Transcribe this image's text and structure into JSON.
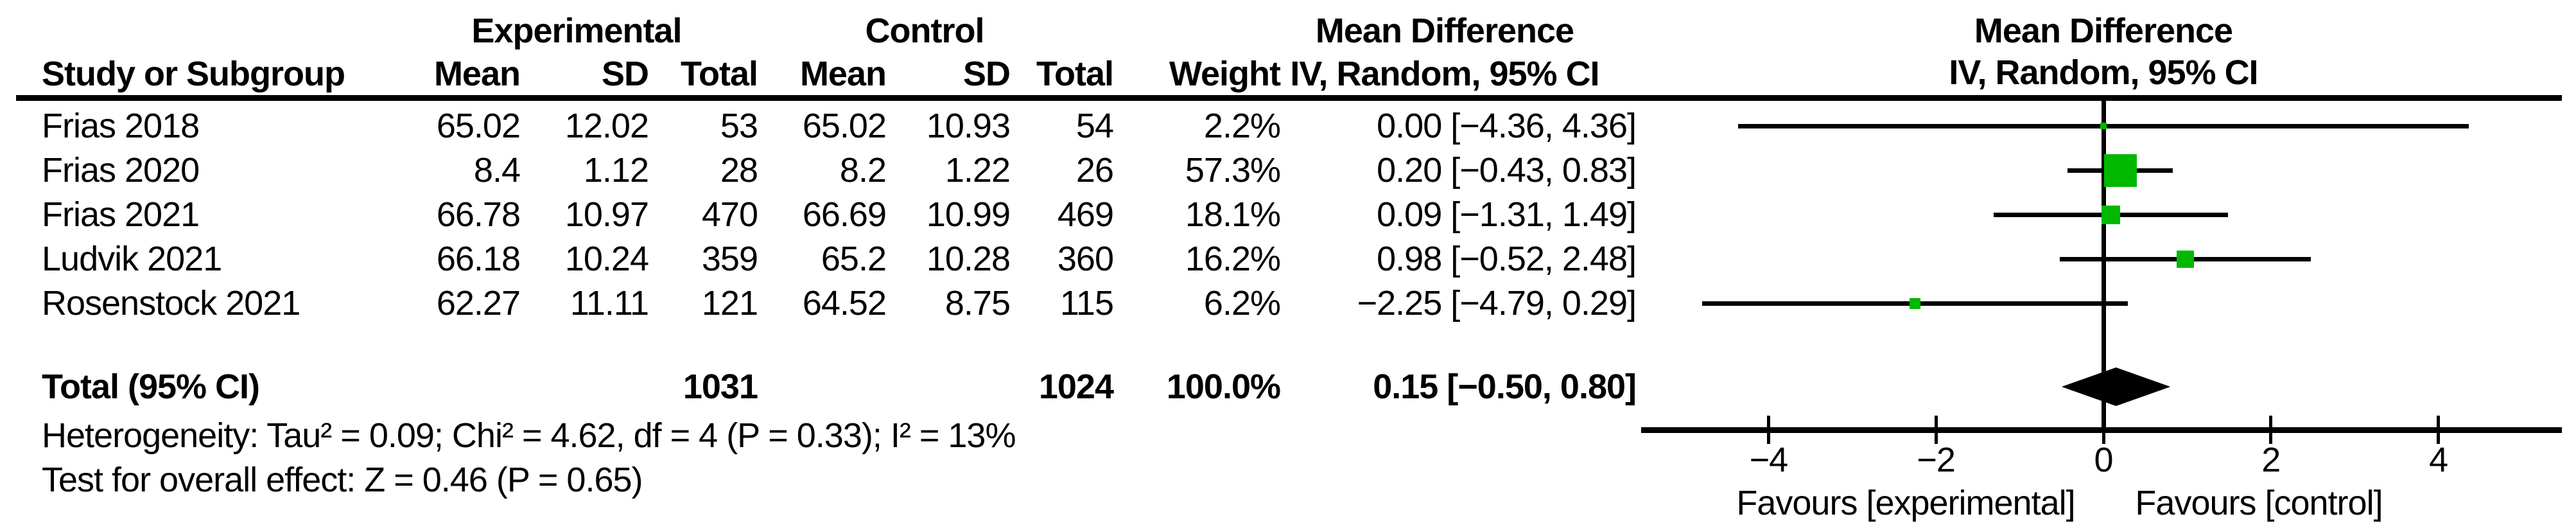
{
  "header": {
    "group_experimental": "Experimental",
    "group_control": "Control",
    "col_study": "Study or Subgroup",
    "col_mean": "Mean",
    "col_sd": "SD",
    "col_total": "Total",
    "col_weight": "Weight",
    "col_md": "Mean Difference",
    "col_method": "IV, Random, 95% CI",
    "plot_title": "Mean Difference",
    "plot_method": "IV, Random, 95% CI"
  },
  "rows": [
    {
      "study": "Frias 2018",
      "e_mean": "65.02",
      "e_sd": "12.02",
      "e_total": "53",
      "c_mean": "65.02",
      "c_sd": "10.93",
      "c_total": "54",
      "weight": "2.2%",
      "ci": "0.00 [−4.36, 4.36]"
    },
    {
      "study": "Frias 2020",
      "e_mean": "8.4",
      "e_sd": "1.12",
      "e_total": "28",
      "c_mean": "8.2",
      "c_sd": "1.22",
      "c_total": "26",
      "weight": "57.3%",
      "ci": "0.20 [−0.43, 0.83]"
    },
    {
      "study": "Frias 2021",
      "e_mean": "66.78",
      "e_sd": "10.97",
      "e_total": "470",
      "c_mean": "66.69",
      "c_sd": "10.99",
      "c_total": "469",
      "weight": "18.1%",
      "ci": "0.09 [−1.31, 1.49]"
    },
    {
      "study": "Ludvik 2021",
      "e_mean": "66.18",
      "e_sd": "10.24",
      "e_total": "359",
      "c_mean": "65.2",
      "c_sd": "10.28",
      "c_total": "360",
      "weight": "16.2%",
      "ci": "0.98 [−0.52, 2.48]"
    },
    {
      "study": "Rosenstock 2021",
      "e_mean": "62.27",
      "e_sd": "11.11",
      "e_total": "121",
      "c_mean": "64.52",
      "c_sd": "8.75",
      "c_total": "115",
      "weight": "6.2%",
      "ci": "−2.25 [−4.79, 0.29]"
    }
  ],
  "total_row": {
    "label": "Total (95% CI)",
    "e_total": "1031",
    "c_total": "1024",
    "weight": "100.0%",
    "ci": "0.15 [−0.50, 0.80]"
  },
  "footer": {
    "heterogeneity": "Heterogeneity: Tau² = 0.09; Chi² = 4.62, df = 4 (P = 0.33); I² = 13%",
    "overall_effect": "Test for overall effect: Z = 0.46 (P = 0.65)"
  },
  "axis_labels": {
    "favours_left": "Favours [experimental]",
    "favours_right": "Favours [control]"
  },
  "colors": {
    "square": "#00b800",
    "diamond": "#000000",
    "line": "#000000"
  },
  "chart_data": {
    "type": "forest",
    "title": "Mean Difference",
    "method": "IV, Random, 95% CI",
    "effect_measure": "Mean Difference",
    "studies": [
      {
        "name": "Frias 2018",
        "md": 0.0,
        "ci_low": -4.36,
        "ci_high": 4.36,
        "weight_pct": 2.2
      },
      {
        "name": "Frias 2020",
        "md": 0.2,
        "ci_low": -0.43,
        "ci_high": 0.83,
        "weight_pct": 57.3
      },
      {
        "name": "Frias 2021",
        "md": 0.09,
        "ci_low": -1.31,
        "ci_high": 1.49,
        "weight_pct": 18.1
      },
      {
        "name": "Ludvik 2021",
        "md": 0.98,
        "ci_low": -0.52,
        "ci_high": 2.48,
        "weight_pct": 16.2
      },
      {
        "name": "Rosenstock 2021",
        "md": -2.25,
        "ci_low": -4.79,
        "ci_high": 0.29,
        "weight_pct": 6.2
      }
    ],
    "total": {
      "label": "Total (95% CI)",
      "md": 0.15,
      "ci_low": -0.5,
      "ci_high": 0.8,
      "experimental_n": 1031,
      "control_n": 1024,
      "weight_pct": 100.0
    },
    "heterogeneity": {
      "tau2": 0.09,
      "chi2": 4.62,
      "df": 4,
      "p": 0.33,
      "i2_pct": 13
    },
    "overall_effect": {
      "z": 0.46,
      "p": 0.65
    },
    "axis": {
      "ticks": [
        -4,
        -2,
        0,
        2,
        4
      ],
      "tick_labels": [
        "−4",
        "−2",
        "0",
        "2",
        "4"
      ],
      "xmin": -5.5,
      "xmax": 5.5,
      "favours_left": "Favours [experimental]",
      "favours_right": "Favours [control]"
    }
  }
}
